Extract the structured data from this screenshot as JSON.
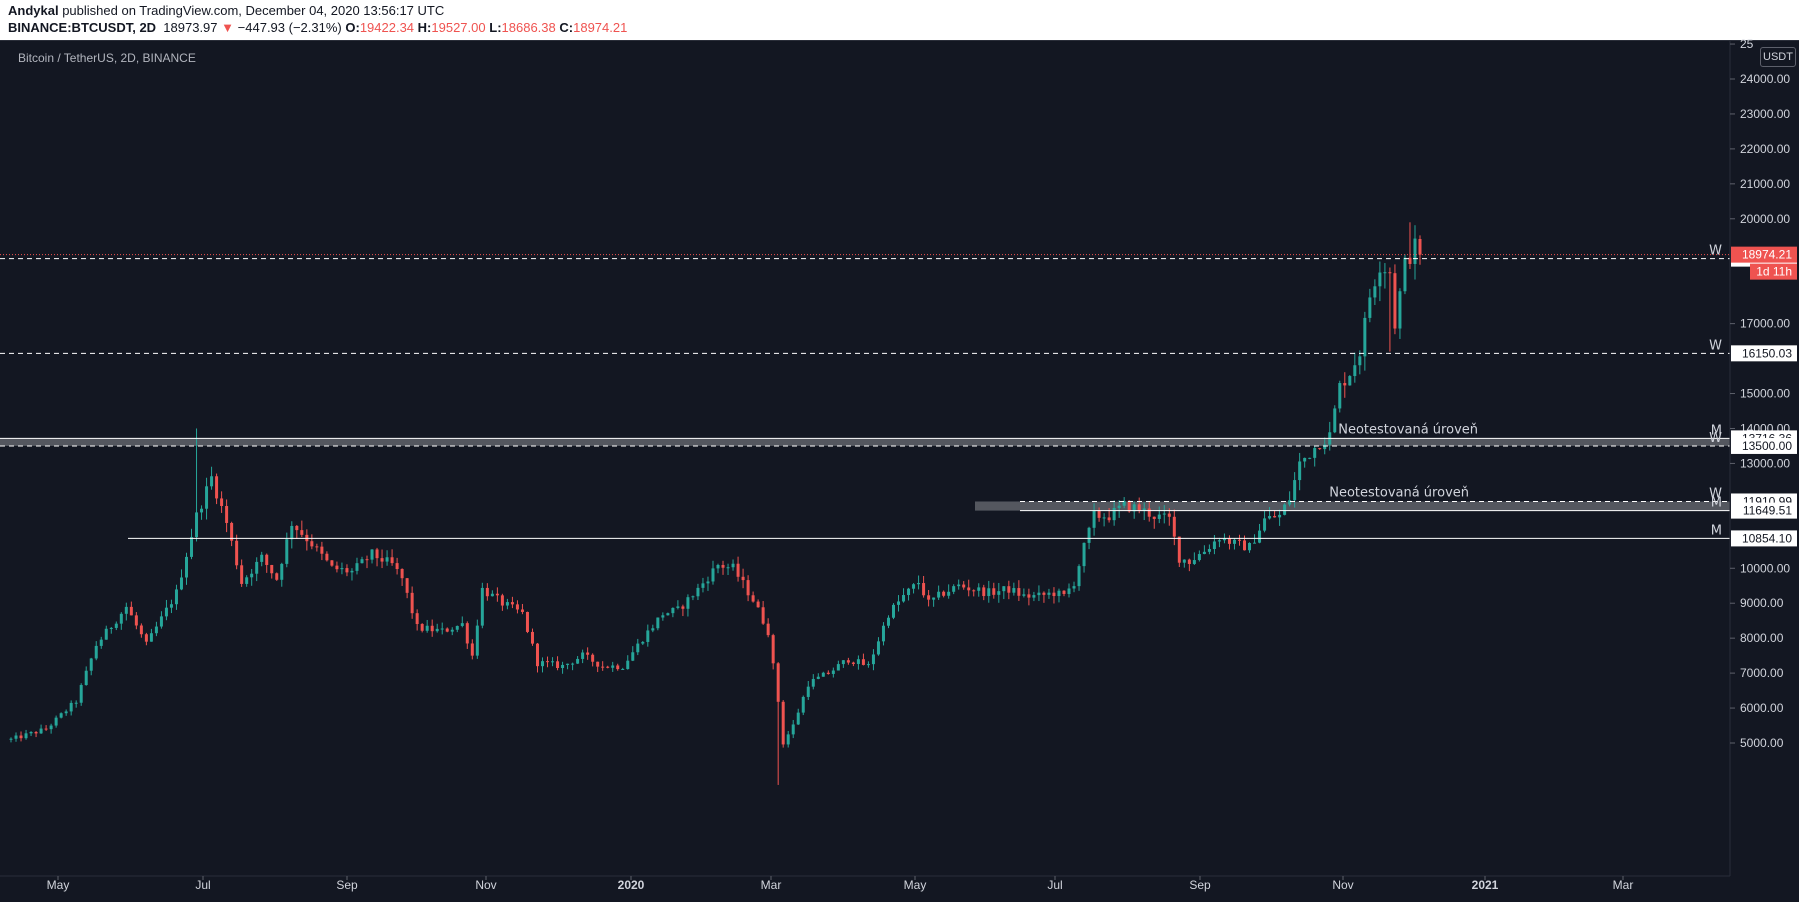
{
  "header": {
    "author": "Andykal",
    "published": " published on TradingView.com, December 04, 2020 13:56:17 UTC",
    "symbol": "BINANCE:BTCUSDT, 2D",
    "last": "18973.97",
    "change_arrow": "▼",
    "change": "−447.93 (−2.31%)",
    "open_label": "O:",
    "open": "19422.34",
    "high_label": "H:",
    "high": "19527.00",
    "low_label": "L:",
    "low": "18686.38",
    "close_label": "C:",
    "close": "18974.21"
  },
  "chart_title": "Bitcoin / TetherUS, 2D, BINANCE",
  "currency_badge": "USDT",
  "chart_data": {
    "type": "candlestick",
    "title": "Bitcoin / TetherUS, 2D, BINANCE",
    "ylim": [
      4700,
      25000
    ],
    "y_ticks": [
      "25",
      "24000.00",
      "23000.00",
      "22000.00",
      "21000.00",
      "20000.00",
      "17000.00",
      "15000.00",
      "14000.00",
      "13000.00",
      "10000.00",
      "9000.00",
      "8000.00",
      "7000.00",
      "6000.00",
      "5000.00"
    ],
    "x_ticks": [
      "May",
      "Jul",
      "Sep",
      "Nov",
      "2020",
      "Mar",
      "May",
      "Jul",
      "Sep",
      "Nov",
      "2021",
      "Mar"
    ],
    "key_points": [
      [
        0,
        5100
      ],
      [
        7,
        5400
      ],
      [
        13,
        6200
      ],
      [
        17,
        7800
      ],
      [
        23,
        8900
      ],
      [
        27,
        7800
      ],
      [
        33,
        9300
      ],
      [
        37,
        11500
      ],
      [
        40,
        12600
      ],
      [
        43,
        11300
      ],
      [
        46,
        9600
      ],
      [
        50,
        10300
      ],
      [
        53,
        9700
      ],
      [
        56,
        11300
      ],
      [
        60,
        10700
      ],
      [
        64,
        10000
      ],
      [
        68,
        9900
      ],
      [
        72,
        10400
      ],
      [
        76,
        10100
      ],
      [
        78,
        9700
      ],
      [
        81,
        8300
      ],
      [
        86,
        8200
      ],
      [
        90,
        8400
      ],
      [
        92,
        7500
      ],
      [
        94,
        9400
      ],
      [
        98,
        9000
      ],
      [
        102,
        8700
      ],
      [
        105,
        7300
      ],
      [
        110,
        7200
      ],
      [
        114,
        7500
      ],
      [
        118,
        7200
      ],
      [
        122,
        7200
      ],
      [
        126,
        8000
      ],
      [
        130,
        8700
      ],
      [
        133,
        8800
      ],
      [
        137,
        9400
      ],
      [
        141,
        10100
      ],
      [
        144,
        10000
      ],
      [
        148,
        9100
      ],
      [
        151,
        8200
      ],
      [
        153,
        6200
      ],
      [
        154,
        5000
      ],
      [
        156,
        5500
      ],
      [
        159,
        6700
      ],
      [
        163,
        7000
      ],
      [
        167,
        7400
      ],
      [
        171,
        7200
      ],
      [
        175,
        8700
      ],
      [
        178,
        9200
      ],
      [
        181,
        9600
      ],
      [
        183,
        9000
      ],
      [
        186,
        9300
      ],
      [
        189,
        9500
      ],
      [
        192,
        9400
      ],
      [
        195,
        9300
      ],
      [
        199,
        9400
      ],
      [
        202,
        9200
      ],
      [
        205,
        9200
      ],
      [
        208,
        9300
      ],
      [
        210,
        9200
      ],
      [
        212,
        9600
      ],
      [
        214,
        10600
      ],
      [
        216,
        11500
      ],
      [
        219,
        11500
      ],
      [
        222,
        11800
      ],
      [
        225,
        11700
      ],
      [
        228,
        11500
      ],
      [
        231,
        11400
      ],
      [
        233,
        10300
      ],
      [
        235,
        10200
      ],
      [
        238,
        10500
      ],
      [
        241,
        10900
      ],
      [
        244,
        10700
      ],
      [
        247,
        10600
      ],
      [
        250,
        11400
      ],
      [
        253,
        11500
      ],
      [
        255,
        12000
      ],
      [
        257,
        13000
      ],
      [
        259,
        13300
      ],
      [
        261,
        13600
      ],
      [
        263,
        13800
      ],
      [
        265,
        15200
      ],
      [
        267,
        15600
      ],
      [
        269,
        16200
      ],
      [
        271,
        17800
      ],
      [
        273,
        18700
      ],
      [
        275,
        18500
      ],
      [
        276,
        17000
      ],
      [
        278,
        18700
      ],
      [
        280,
        19200
      ],
      [
        281,
        18974
      ]
    ],
    "annotations": [
      {
        "price": 18860.02,
        "label": "18860.02",
        "tag": "W",
        "style": "dashed"
      },
      {
        "price": 16150.03,
        "label": "16150.03",
        "tag": "W",
        "style": "dashed"
      },
      {
        "price": 13716.36,
        "label": "13716.36",
        "tag": "M",
        "style": "solid"
      },
      {
        "price": 13500.0,
        "label": "13500.00",
        "tag": "W",
        "style": "dashed"
      },
      {
        "price": 11910.99,
        "label": "11910.99",
        "tag": "W",
        "style": "dashed"
      },
      {
        "price": 11649.51,
        "label": "11649.51",
        "tag": "M",
        "style": "solid"
      },
      {
        "price": 10854.1,
        "label": "10854.10",
        "tag": "M",
        "style": "solid"
      }
    ],
    "zones": [
      {
        "top": 13716.36,
        "bottom": 13500.0,
        "label": "Neotestovaná úroveň"
      },
      {
        "top": 11910.99,
        "bottom": 11649.51,
        "label": "Neotestovaná úroveň"
      }
    ],
    "last_price": {
      "value": "18974.21",
      "countdown": "1d 11h"
    }
  },
  "colors": {
    "up": "#26a69a",
    "down": "#ef5350",
    "background": "#131722",
    "grid": "#2a2e39"
  }
}
